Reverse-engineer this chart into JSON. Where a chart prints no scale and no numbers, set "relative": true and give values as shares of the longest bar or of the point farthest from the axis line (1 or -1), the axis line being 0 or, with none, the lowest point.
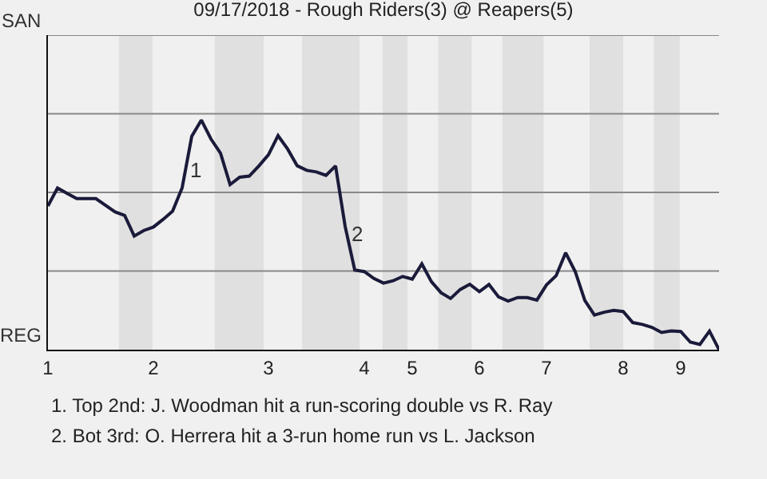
{
  "chart_data": {
    "type": "line",
    "title": "09/17/2018 - Rough Riders(3) @ Reapers(5)",
    "categories": [
      "1",
      null,
      null,
      null,
      null,
      null,
      null,
      null,
      null,
      null,
      null,
      "2",
      null,
      null,
      null,
      null,
      null,
      null,
      null,
      null,
      null,
      null,
      null,
      "3",
      null,
      null,
      null,
      null,
      null,
      null,
      null,
      null,
      null,
      "4",
      null,
      null,
      null,
      null,
      "5",
      null,
      null,
      null,
      null,
      null,
      null,
      "6",
      null,
      null,
      null,
      null,
      null,
      null,
      "7",
      null,
      null,
      null,
      null,
      null,
      null,
      null,
      "8",
      null,
      null,
      null,
      null,
      null,
      "9",
      null,
      null,
      null,
      null
    ],
    "series": [
      {
        "color": "#1a1a3a",
        "values": [
          0.626,
          0.704,
          0.681,
          0.658,
          0.658,
          0.658,
          0.629,
          0.6,
          0.585,
          0.495,
          0.519,
          0.534,
          0.567,
          0.603,
          0.705,
          0.929,
          1,
          0.918,
          0.856,
          0.719,
          0.751,
          0.756,
          0.8,
          0.849,
          0.932,
          0.874,
          0.801,
          0.781,
          0.774,
          0.759,
          0.8,
          0.537,
          0.347,
          0.34,
          0.31,
          0.29,
          0.3,
          0.319,
          0.307,
          0.374,
          0.296,
          0.248,
          0.223,
          0.262,
          0.285,
          0.253,
          0.284,
          0.23,
          0.212,
          0.227,
          0.227,
          0.216,
          0.282,
          0.322,
          0.422,
          0.34,
          0.214,
          0.151,
          0.163,
          0.171,
          0.166,
          0.118,
          0.11,
          0.097,
          0.075,
          0.082,
          0.079,
          0.033,
          0.023,
          0.081,
          0
        ]
      }
    ],
    "relative": true,
    "marker": "none",
    "line_style": "solid",
    "ref_lines": [
      {
        "axis": "y",
        "value": 0.3425,
        "color": "#888888"
      },
      {
        "axis": "y",
        "value": 0.685,
        "color": "#888888"
      },
      {
        "axis": "y",
        "value": 1.0275,
        "color": "#888888"
      },
      {
        "axis": "y",
        "value": 1.37,
        "color": "#888888"
      }
    ],
    "annotations": [
      "1",
      "2",
      "SAN",
      "REG",
      "1. Top 2nd: J. Woodman hit a run-scoring double vs R. Ray",
      "2. Bot 3rd: O. Herrera hit a 3-run home run vs L. Jackson"
    ]
  }
}
